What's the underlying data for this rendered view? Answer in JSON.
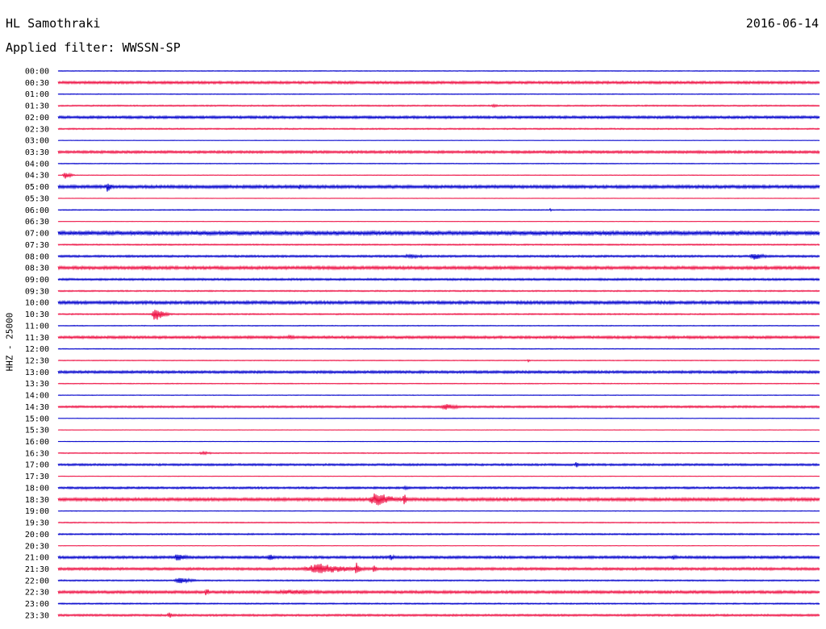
{
  "header": {
    "station": "HL Samothraki",
    "date": "2016-06-14",
    "filter_text": "Applied filter: WWSSN-SP"
  },
  "colors": {
    "even_row": "#0000cc",
    "odd_row": "#ee1144"
  },
  "chart_data": {
    "type": "line",
    "title": "HL Samothraki",
    "ylabel": "HHZ - 25000",
    "row_labels": [
      "00:00",
      "00:30",
      "01:00",
      "01:30",
      "02:00",
      "02:30",
      "03:00",
      "03:30",
      "04:00",
      "04:30",
      "05:00",
      "05:30",
      "06:00",
      "06:30",
      "07:00",
      "07:30",
      "08:00",
      "08:30",
      "09:00",
      "09:30",
      "10:00",
      "10:30",
      "11:00",
      "11:30",
      "12:00",
      "12:30",
      "13:00",
      "13:30",
      "14:00",
      "14:30",
      "15:00",
      "15:30",
      "16:00",
      "16:30",
      "17:00",
      "17:30",
      "18:00",
      "18:30",
      "19:00",
      "19:30",
      "20:00",
      "20:30",
      "21:00",
      "21:30",
      "22:00",
      "22:30",
      "23:00",
      "23:30"
    ],
    "noise_level": [
      0.5,
      1.5,
      0.5,
      0.8,
      1.5,
      0.8,
      0.3,
      1.5,
      0.5,
      0.4,
      1.8,
      0.3,
      0.6,
      0.3,
      2.2,
      0.8,
      1.2,
      1.8,
      1.2,
      0.8,
      1.8,
      0.8,
      0.5,
      1.5,
      0.5,
      0.5,
      1.5,
      0.5,
      0.4,
      1.2,
      0.3,
      0.3,
      0.3,
      0.6,
      1.2,
      0.3,
      1.2,
      1.8,
      0.4,
      0.6,
      0.9,
      0.3,
      1.5,
      1.5,
      0.8,
      1.6,
      0.8,
      1.2
    ],
    "events": [
      {
        "row": 3,
        "minute": 17,
        "amplitude": 2,
        "duration_min": 0.8
      },
      {
        "row": 9,
        "minute": 0.2,
        "amplitude": 6,
        "duration_min": 0.5
      },
      {
        "row": 10,
        "minute": 1.9,
        "amplitude": 8,
        "duration_min": 0.4
      },
      {
        "row": 10,
        "minute": 9.5,
        "amplitude": 4,
        "duration_min": 0.2
      },
      {
        "row": 10,
        "minute": 29.2,
        "amplitude": 3,
        "duration_min": 0.2
      },
      {
        "row": 12,
        "minute": 19.4,
        "amplitude": 3,
        "duration_min": 0.1
      },
      {
        "row": 16,
        "minute": 13.5,
        "amplitude": 3,
        "duration_min": 2
      },
      {
        "row": 16,
        "minute": 27.2,
        "amplitude": 5,
        "duration_min": 1.2
      },
      {
        "row": 17,
        "minute": 3.2,
        "amplitude": 3,
        "duration_min": 1.2
      },
      {
        "row": 21,
        "minute": 3.7,
        "amplitude": 10,
        "duration_min": 0.8
      },
      {
        "row": 23,
        "minute": 9,
        "amplitude": 3,
        "duration_min": 0.8
      },
      {
        "row": 25,
        "minute": 18.5,
        "amplitude": 2,
        "duration_min": 0.2
      },
      {
        "row": 29,
        "minute": 15,
        "amplitude": 4,
        "duration_min": 1.5
      },
      {
        "row": 33,
        "minute": 5.5,
        "amplitude": 2,
        "duration_min": 1.2
      },
      {
        "row": 34,
        "minute": 20.4,
        "amplitude": 6,
        "duration_min": 0.2
      },
      {
        "row": 36,
        "minute": 13.5,
        "amplitude": 2,
        "duration_min": 1
      },
      {
        "row": 37,
        "minute": 12.2,
        "amplitude": 10,
        "duration_min": 1.8
      },
      {
        "row": 37,
        "minute": 13.6,
        "amplitude": 9,
        "duration_min": 0.3
      },
      {
        "row": 42,
        "minute": 4.5,
        "amplitude": 5,
        "duration_min": 1.2
      },
      {
        "row": 42,
        "minute": 8.2,
        "amplitude": 4,
        "duration_min": 0.8
      },
      {
        "row": 42,
        "minute": 13,
        "amplitude": 4,
        "duration_min": 0.6
      },
      {
        "row": 42,
        "minute": 24.2,
        "amplitude": 4,
        "duration_min": 0.4
      },
      {
        "row": 43,
        "minute": 9.5,
        "amplitude": 7,
        "duration_min": 4
      },
      {
        "row": 43,
        "minute": 11.7,
        "amplitude": 9,
        "duration_min": 0.4
      },
      {
        "row": 43,
        "minute": 12.4,
        "amplitude": 7,
        "duration_min": 0.3
      },
      {
        "row": 44,
        "minute": 4.5,
        "amplitude": 4,
        "duration_min": 1.5
      },
      {
        "row": 45,
        "minute": 5.8,
        "amplitude": 7,
        "duration_min": 0.3
      },
      {
        "row": 45,
        "minute": 8,
        "amplitude": 3,
        "duration_min": 6
      },
      {
        "row": 47,
        "minute": 4.3,
        "amplitude": 4,
        "duration_min": 0.5
      }
    ],
    "x_range_minutes": [
      0,
      30
    ],
    "grid": false,
    "legend": "none"
  }
}
